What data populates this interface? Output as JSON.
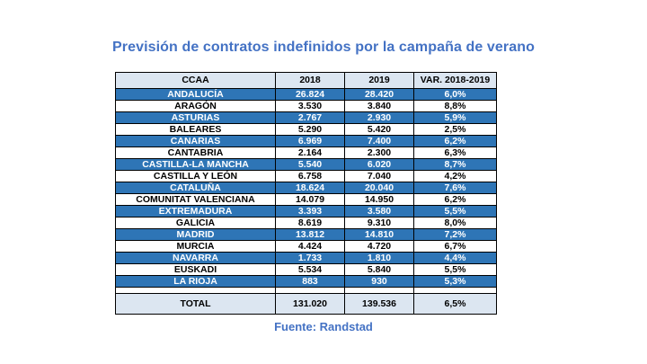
{
  "title": "Previsión de contratos indefinidos por la campaña de verano",
  "source": "Fuente: Randstad",
  "table": {
    "headers": [
      "CCAA",
      "2018",
      "2019",
      "VAR. 2018-2019"
    ],
    "rows": [
      [
        "ANDALUCÍA",
        "26.824",
        "28.420",
        "6,0%"
      ],
      [
        "ARAGÓN",
        "3.530",
        "3.840",
        "8,8%"
      ],
      [
        "ASTURIAS",
        "2.767",
        "2.930",
        "5,9%"
      ],
      [
        "BALEARES",
        "5.290",
        "5.420",
        "2,5%"
      ],
      [
        "CANARIAS",
        "6.969",
        "7.400",
        "6,2%"
      ],
      [
        "CANTABRIA",
        "2.164",
        "2.300",
        "6,3%"
      ],
      [
        "CASTILLA-LA MANCHA",
        "5.540",
        "6.020",
        "8,7%"
      ],
      [
        "CASTILLA Y LEÓN",
        "6.758",
        "7.040",
        "4,2%"
      ],
      [
        "CATALUÑA",
        "18.624",
        "20.040",
        "7,6%"
      ],
      [
        "COMUNITAT VALENCIANA",
        "14.079",
        "14.950",
        "6,2%"
      ],
      [
        "EXTREMADURA",
        "3.393",
        "3.580",
        "5,5%"
      ],
      [
        "GALICIA",
        "8.619",
        "9.310",
        "8,0%"
      ],
      [
        "MADRID",
        "13.812",
        "14.810",
        "7,2%"
      ],
      [
        "MURCIA",
        "4.424",
        "4.720",
        "6,7%"
      ],
      [
        "NAVARRA",
        "1.733",
        "1.810",
        "4,4%"
      ],
      [
        "EUSKADI",
        "5.534",
        "5.840",
        "5,5%"
      ],
      [
        "LA RIOJA",
        "883",
        "930",
        "5,3%"
      ]
    ],
    "total": [
      "TOTAL",
      "131.020",
      "139.536",
      "6,5%"
    ]
  },
  "colors": {
    "accent": "#4472c4",
    "row_highlight": "#2e75b6",
    "header_bg": "#dce6f1"
  }
}
